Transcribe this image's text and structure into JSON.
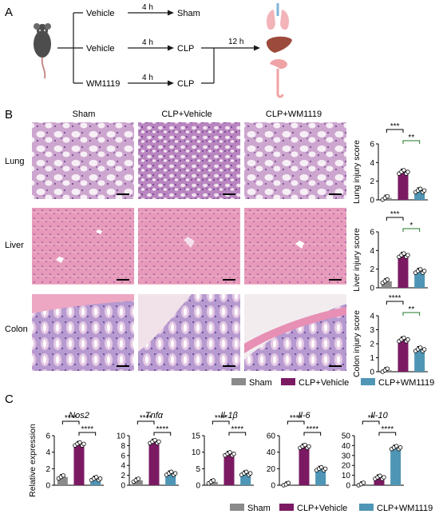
{
  "panel_a": {
    "label": "A",
    "arrows": [
      {
        "time": "4 h",
        "start": "Vehicle",
        "end": "Sham"
      },
      {
        "time": "4 h",
        "start": "Vehicle",
        "end": "CLP"
      },
      {
        "time": "4 h",
        "start": "WM1119",
        "end": "CLP"
      }
    ],
    "merge_time": "12 h"
  },
  "panel_b": {
    "label": "B",
    "columns": [
      "Sham",
      "CLP+Vehicle",
      "CLP+WM1119"
    ],
    "rows": [
      "Lung",
      "Liver",
      "Colon"
    ]
  },
  "panel_c": {
    "label": "C"
  },
  "legend_b": [
    "Sham",
    "CLP+Vehicle",
    "CLP+WM1119"
  ],
  "legend_c": [
    "Sham",
    "CLP+Vehicle",
    "CLP+WM1119"
  ],
  "colors": {
    "sham": "#8a8a8a",
    "vehicle": "#7b1a63",
    "wm1119": "#4f95b5"
  },
  "chart_data": [
    {
      "type": "bar",
      "ylabel": "Lung injury score",
      "ylim": [
        0,
        6
      ],
      "yticks": [
        0,
        2,
        4,
        6
      ],
      "categories": [
        "Sham",
        "CLP+Vehicle",
        "CLP+WM1119"
      ],
      "values": [
        0.2,
        3.0,
        1.0
      ],
      "sig": [
        {
          "from": 0,
          "to": 1,
          "label": "***"
        },
        {
          "from": 1,
          "to": 2,
          "label": "**"
        }
      ]
    },
    {
      "type": "bar",
      "ylabel": "Liver injury score",
      "ylim": [
        0,
        6
      ],
      "yticks": [
        0,
        2,
        4,
        6
      ],
      "categories": [
        "Sham",
        "CLP+Vehicle",
        "CLP+WM1119"
      ],
      "values": [
        0.7,
        3.5,
        1.8
      ],
      "sig": [
        {
          "from": 0,
          "to": 1,
          "label": "***"
        },
        {
          "from": 1,
          "to": 2,
          "label": "*"
        }
      ]
    },
    {
      "type": "bar",
      "ylabel": "Colon injury score",
      "ylim": [
        0,
        4
      ],
      "yticks": [
        0,
        1,
        2,
        3,
        4
      ],
      "categories": [
        "Sham",
        "CLP+Vehicle",
        "CLP+WM1119"
      ],
      "values": [
        0.1,
        2.3,
        1.6
      ],
      "sig": [
        {
          "from": 0,
          "to": 1,
          "label": "****"
        },
        {
          "from": 1,
          "to": 2,
          "label": "**"
        }
      ]
    },
    {
      "type": "bar",
      "title": "Nos2",
      "ylabel": "Relative expression",
      "ylim": [
        0,
        6
      ],
      "yticks": [
        0,
        2,
        4,
        6
      ],
      "categories": [
        "Sham",
        "CLP+Vehicle",
        "CLP+WM1119"
      ],
      "values": [
        1.0,
        5.0,
        0.8
      ],
      "sig": [
        {
          "from": 0,
          "to": 1,
          "label": "****"
        },
        {
          "from": 1,
          "to": 2,
          "label": "****"
        }
      ]
    },
    {
      "type": "bar",
      "title": "Tnfα",
      "ylim": [
        0,
        10
      ],
      "yticks": [
        0,
        2,
        4,
        6,
        8,
        10
      ],
      "categories": [
        "Sham",
        "CLP+Vehicle",
        "CLP+WM1119"
      ],
      "values": [
        1.0,
        8.8,
        2.4
      ],
      "sig": [
        {
          "from": 0,
          "to": 1,
          "label": "****"
        },
        {
          "from": 1,
          "to": 2,
          "label": "****"
        }
      ]
    },
    {
      "type": "bar",
      "title": "Il-1β",
      "ylim": [
        0,
        15
      ],
      "yticks": [
        0,
        5,
        10,
        15
      ],
      "categories": [
        "Sham",
        "CLP+Vehicle",
        "CLP+WM1119"
      ],
      "values": [
        1.0,
        9.5,
        3.6
      ],
      "sig": [
        {
          "from": 0,
          "to": 1,
          "label": "****"
        },
        {
          "from": 1,
          "to": 2,
          "label": "****"
        }
      ]
    },
    {
      "type": "bar",
      "title": "Il-6",
      "ylim": [
        0,
        60
      ],
      "yticks": [
        0,
        20,
        40,
        60
      ],
      "categories": [
        "Sham",
        "CLP+Vehicle",
        "CLP+WM1119"
      ],
      "values": [
        1.0,
        47.0,
        20.0
      ],
      "sig": [
        {
          "from": 0,
          "to": 1,
          "label": "****"
        },
        {
          "from": 1,
          "to": 2,
          "label": "****"
        }
      ]
    },
    {
      "type": "bar",
      "title": "Il-10",
      "ylim": [
        0,
        50
      ],
      "yticks": [
        0,
        10,
        20,
        30,
        40,
        50
      ],
      "categories": [
        "Sham",
        "CLP+Vehicle",
        "CLP+WM1119"
      ],
      "values": [
        1.0,
        8.0,
        38.0
      ],
      "sig": [
        {
          "from": 0,
          "to": 1,
          "label": "**"
        },
        {
          "from": 1,
          "to": 2,
          "label": "****"
        }
      ]
    }
  ]
}
